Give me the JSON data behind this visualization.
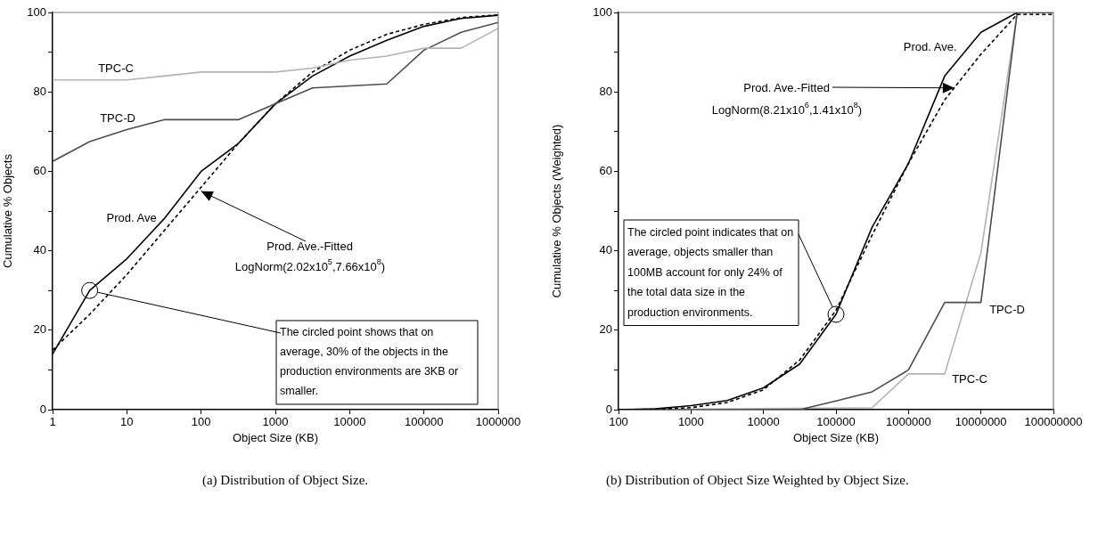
{
  "chart_data": [
    {
      "type": "line",
      "title": "(a) Distribution of Object Size.",
      "xlabel": "Object Size (KB)",
      "ylabel": "Cumulative % Objects",
      "log": "x",
      "grid": false,
      "xlim": [
        1,
        1000000
      ],
      "xticks": [
        1,
        10,
        100,
        1000,
        10000,
        100000,
        1000000
      ],
      "ylim": [
        0,
        100
      ],
      "yticks": [
        0,
        {
          "value": 10,
          "label": null
        },
        20,
        {
          "value": 30,
          "label": null
        },
        40,
        {
          "value": 50,
          "label": null
        },
        60,
        {
          "value": 70,
          "label": null
        },
        80,
        {
          "value": 90,
          "label": null
        },
        100
      ],
      "series": [
        {
          "name": "TPC-C",
          "color": "#b3b3b3",
          "x": [
            1,
            10,
            31.6,
            100,
            1000,
            3162,
            10000,
            31623,
            100000,
            316228,
            1000000
          ],
          "values": [
            83,
            83,
            84,
            85,
            85,
            86,
            88,
            89,
            91,
            91,
            96
          ]
        },
        {
          "name": "TPC-D",
          "color": "#4d4d4d",
          "x": [
            1,
            3.16,
            10,
            31.6,
            100,
            316,
            1000,
            3162,
            10000,
            31623,
            100000,
            316228,
            1000000
          ],
          "values": [
            62.5,
            67.5,
            70.5,
            73,
            73,
            73,
            77,
            81,
            81.5,
            82,
            90.5,
            95,
            97.5
          ]
        },
        {
          "name": "Prod. Ave",
          "color": "#000000",
          "x": [
            1,
            3.16,
            10,
            31.6,
            100,
            316,
            1000,
            3162,
            10000,
            31623,
            100000,
            316228,
            1000000
          ],
          "values": [
            14,
            30,
            38,
            48,
            60,
            67,
            77,
            84,
            89,
            93,
            96.5,
            98.5,
            99.3
          ]
        },
        {
          "color": "#000000",
          "line_style": "dashed",
          "x": [
            1,
            3.16,
            10,
            31.6,
            100,
            316,
            1000,
            3162,
            10000,
            31623,
            100000,
            316228,
            1000000
          ],
          "values": [
            15,
            24,
            34,
            45,
            56,
            67,
            77,
            85,
            90.5,
            94.5,
            97,
            98.7,
            99.4
          ]
        }
      ],
      "annotations": [
        {
          "text": "Prod. Ave.-Fitted\nLogNorm(2.02x10$^{5}$,7.66x10$^{8}$)",
          "x": 100,
          "y": 55
        },
        {
          "text": "The circled point shows that on average, 30% of the objects in the production environments are 3KB or smaller.",
          "x": 3.16,
          "y": 30
        }
      ]
    },
    {
      "type": "line",
      "title": "(b) Distribution of Object Size Weighted by Object Size.",
      "xlabel": "Object Size (KB)",
      "ylabel": "Cumulative % Objects (Weighted)",
      "log": "x",
      "grid": false,
      "xlim": [
        100,
        100000000
      ],
      "xticks": [
        100,
        1000,
        10000,
        100000,
        1000000,
        10000000,
        100000000
      ],
      "ylim": [
        0,
        100
      ],
      "yticks": [
        0,
        {
          "value": 10,
          "label": null
        },
        20,
        {
          "value": 30,
          "label": null
        },
        40,
        {
          "value": 50,
          "label": null
        },
        60,
        {
          "value": 70,
          "label": null
        },
        80,
        {
          "value": 90,
          "label": null
        },
        100
      ],
      "series": [
        {
          "name": "Prod. Ave.",
          "color": "#000000",
          "x": [
            100,
            316,
            1000,
            3162,
            10000,
            31623,
            100000,
            316228,
            1000000,
            3162278,
            10000000,
            31622777,
            100000000
          ],
          "values": [
            0,
            0.2,
            1,
            2.3,
            5.5,
            11.5,
            24,
            46,
            62,
            84,
            95,
            100,
            100
          ]
        },
        {
          "color": "#000000",
          "line_style": "dashed",
          "x": [
            100,
            316,
            1000,
            3162,
            10000,
            31623,
            100000,
            316228,
            1000000,
            3162278,
            10000000,
            31622777,
            100000000
          ],
          "values": [
            0,
            0.1,
            0.5,
            1.8,
            5,
            12.5,
            25,
            44,
            62,
            78,
            89.5,
            99.5,
            99.5
          ]
        },
        {
          "name": "TPC-D",
          "color": "#4d4d4d",
          "x": [
            100,
            31623,
            100000,
            316228,
            1000000,
            3162278,
            10000000,
            31622777,
            100000000
          ],
          "values": [
            0,
            0,
            2.2,
            4.5,
            10,
            27,
            27,
            100,
            100
          ]
        },
        {
          "name": "TPC-C",
          "color": "#b3b3b3",
          "x": [
            100,
            316228,
            1000000,
            3162278,
            10000000,
            31622777,
            100000000
          ],
          "values": [
            0,
            0.5,
            9,
            9,
            39.5,
            100,
            100
          ]
        }
      ],
      "annotations": [
        {
          "text": "Prod. Ave.-Fitted\nLogNorm(8.21x10$^{6}$,1.41x10$^{8}$)",
          "x": 4300000,
          "y": 81
        },
        {
          "text": "The circled point indicates that on average, objects smaller than 100MB account for only 24% of the total data size in the production environments.",
          "x": 100000,
          "y": 24
        }
      ]
    }
  ]
}
